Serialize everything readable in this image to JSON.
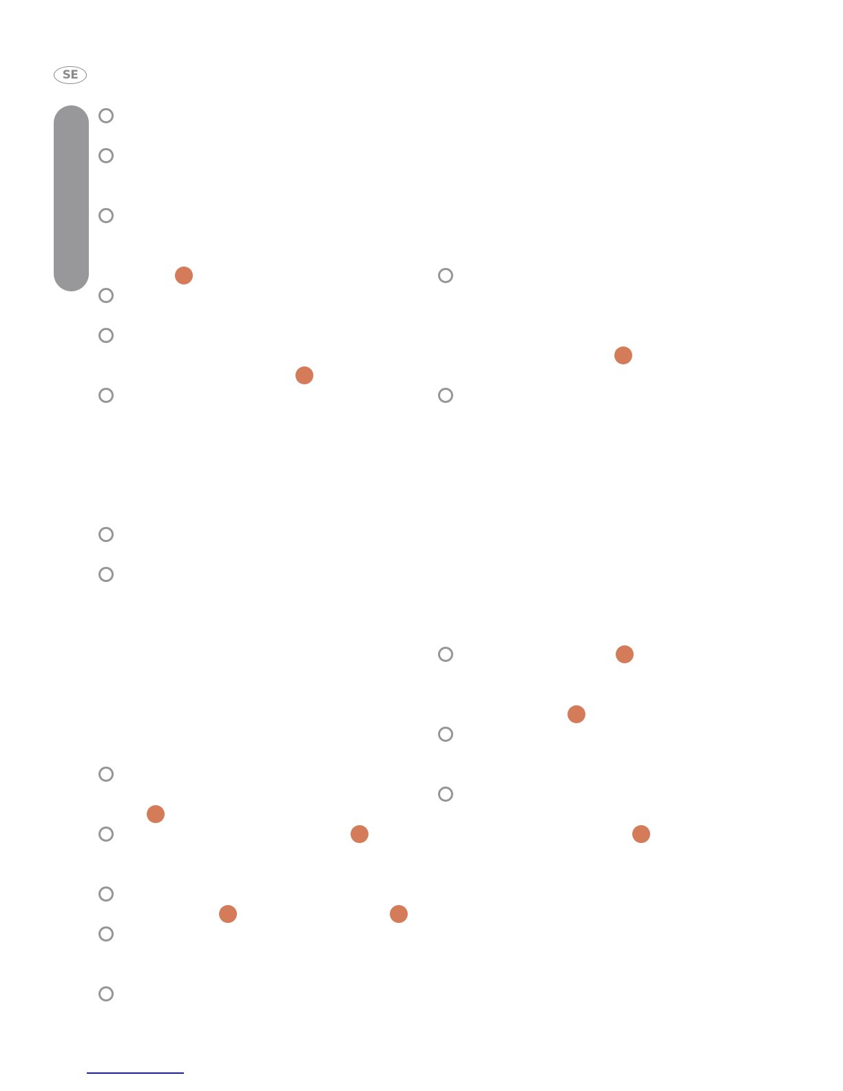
{
  "header": {
    "language_badge": "SE"
  },
  "colors": {
    "ring": "#959595",
    "dot": "#d47b59",
    "side_tab": "#98989b",
    "footer_rule": "#1c1ccc"
  }
}
